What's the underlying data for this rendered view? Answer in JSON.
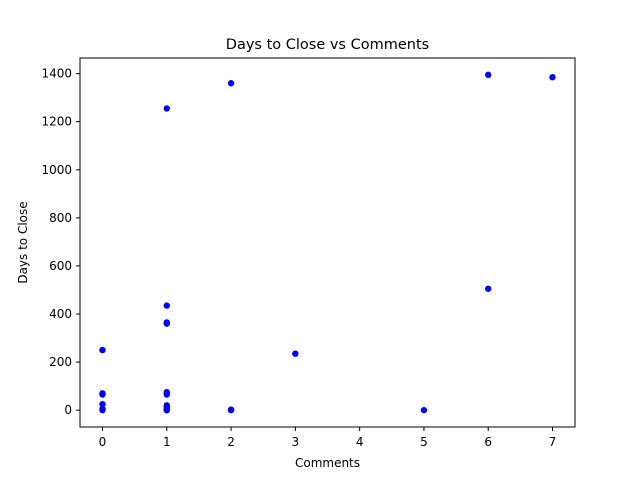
{
  "chart_data": {
    "type": "scatter",
    "title": "Days to Close vs Comments",
    "xlabel": "Comments",
    "ylabel": "Days to Close",
    "xlim": [
      -0.35,
      7.35
    ],
    "ylim": [
      -70,
      1465
    ],
    "xticks": [
      0,
      1,
      2,
      3,
      4,
      5,
      6,
      7
    ],
    "yticks": [
      0,
      200,
      400,
      600,
      800,
      1000,
      1200,
      1400
    ],
    "grid": false,
    "legend": "none",
    "marker_color": "#0000ff",
    "series": [
      {
        "x": [
          0,
          0,
          0,
          0,
          0,
          0,
          1,
          1,
          1,
          1,
          1,
          1,
          1,
          1,
          1,
          1,
          1,
          1,
          2,
          2,
          2,
          3,
          5,
          6,
          6,
          7
        ],
        "y": [
          250,
          70,
          65,
          25,
          5,
          0,
          1255,
          435,
          365,
          360,
          75,
          65,
          20,
          15,
          5,
          0,
          0,
          0,
          1360,
          2,
          0,
          235,
          0,
          1395,
          505,
          1385
        ]
      }
    ]
  }
}
